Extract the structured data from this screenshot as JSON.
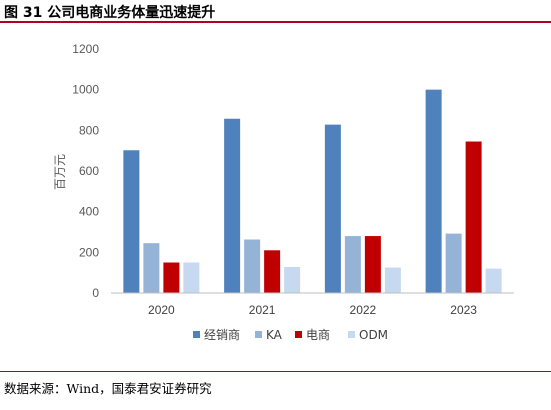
{
  "figure": {
    "title": "图 31 公司电商业务体量迅速提升",
    "source": "数据来源：Wind，国泰君安证券研究"
  },
  "chart_data": {
    "type": "bar",
    "categories": [
      "2020",
      "2021",
      "2022",
      "2023"
    ],
    "series": [
      {
        "name": "经销商",
        "color": "#4f81bd",
        "values": [
          702,
          857,
          828,
          1000
        ]
      },
      {
        "name": "KA",
        "color": "#95b3d7",
        "values": [
          245,
          263,
          280,
          292
        ]
      },
      {
        "name": "电商",
        "color": "#c00000",
        "values": [
          150,
          210,
          280,
          745
        ]
      },
      {
        "name": "ODM",
        "color": "#c6d9f1",
        "values": [
          150,
          128,
          125,
          120
        ]
      }
    ],
    "ylabel": "百万元",
    "ylim": [
      0,
      1200
    ],
    "yticks": [
      "0",
      "200",
      "400",
      "600",
      "800",
      "1000",
      "1200"
    ],
    "grid": false,
    "legend": "bottom"
  }
}
